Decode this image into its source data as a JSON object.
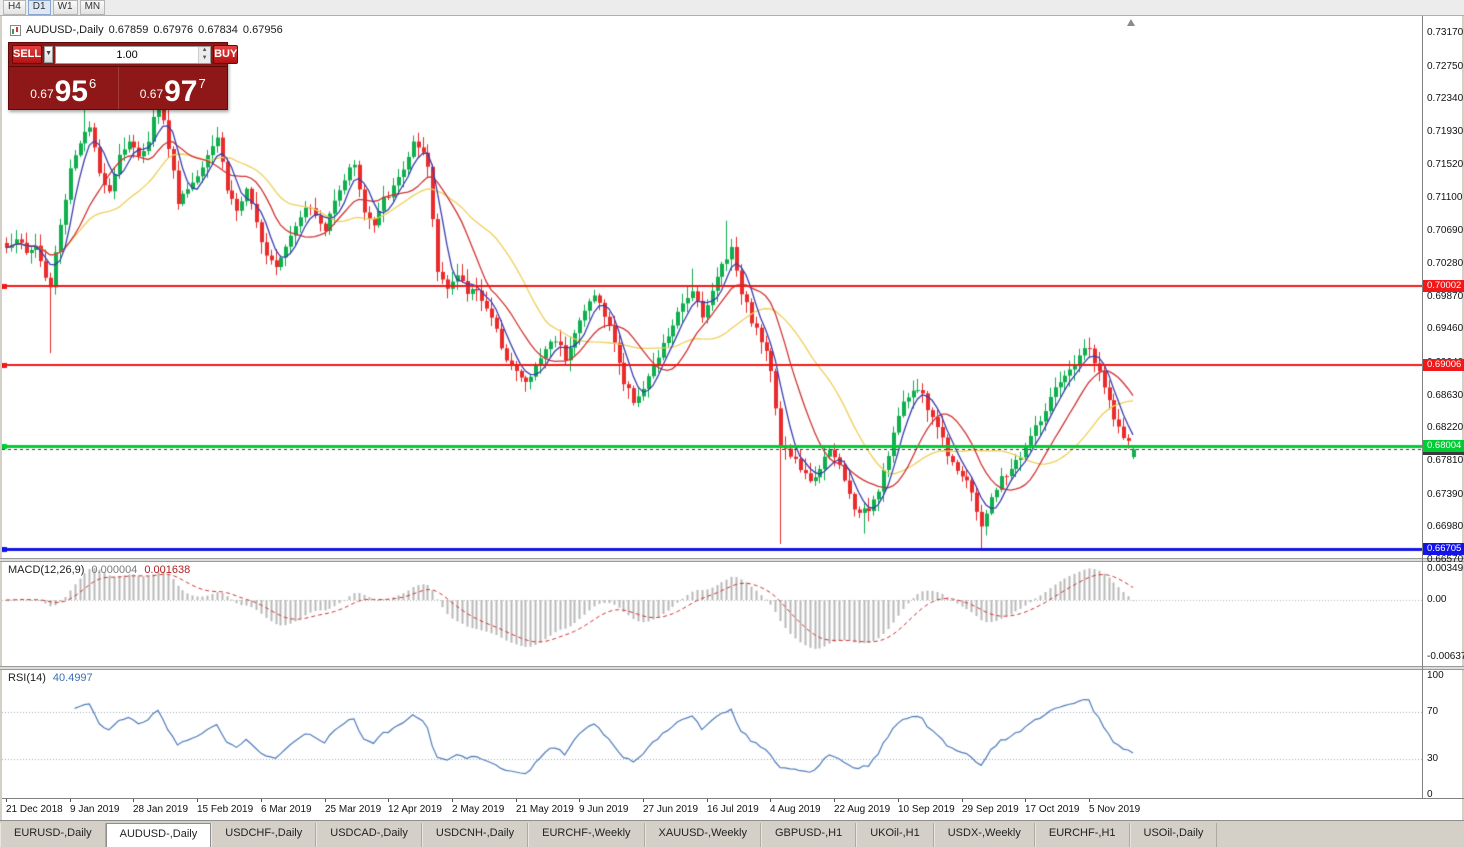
{
  "toolbar": {
    "buttons": [
      "H4",
      "D1",
      "W1",
      "MN"
    ],
    "active": "D1"
  },
  "chart": {
    "title": {
      "symbol": "AUDUSD-,Daily",
      "open": "0.67859",
      "high": "0.67976",
      "low": "0.67834",
      "close": "0.67956"
    },
    "trade_panel": {
      "sell_label": "SELL",
      "buy_label": "BUY",
      "volume": "1.00",
      "sell_price_small": "0.67",
      "sell_price_big": "95",
      "sell_price_sup": "6",
      "buy_price_small": "0.67",
      "buy_price_big": "97",
      "buy_price_sup": "7",
      "icons": {
        "dropdown_arrow": "▼",
        "spin_up": "▲",
        "spin_down": "▼"
      }
    },
    "price_axis_labels": [
      "0.73170",
      "0.72750",
      "0.72340",
      "0.71930",
      "0.71520",
      "0.71100",
      "0.70690",
      "0.70280",
      "0.69870",
      "0.69460",
      "0.69040",
      "0.68630",
      "0.68220",
      "0.67810",
      "0.67390",
      "0.66980",
      "0.66570"
    ],
    "hlines": [
      {
        "price": 0.70002,
        "label": "0.70002",
        "color": "#f01818",
        "width": 2
      },
      {
        "price": 0.69006,
        "label": "0.69006",
        "color": "#f01818",
        "width": 2
      },
      {
        "price": 0.68004,
        "label": "0.68004",
        "color": "#00cc33",
        "width": 3,
        "on_top": true
      },
      {
        "price": 0.66705,
        "label": "0.66705",
        "color": "#1414e6",
        "width": 3
      }
    ],
    "current_price": {
      "value": 0.67956,
      "label": "0.67956",
      "color": "#3a3a3a"
    },
    "date_labels": [
      "21 Dec 2018",
      "9 Jan 2019",
      "28 Jan 2019",
      "15 Feb 2019",
      "6 Mar 2019",
      "25 Mar 2019",
      "12 Apr 2019",
      "2 May 2019",
      "21 May 2019",
      "9 Jun 2019",
      "27 Jun 2019",
      "16 Jul 2019",
      "4 Aug 2019",
      "22 Aug 2019",
      "10 Sep 2019",
      "29 Sep 2019",
      "17 Oct 2019",
      "5 Nov 2019"
    ]
  },
  "chart_data": {
    "type": "candlestick",
    "symbol": "AUDUSD",
    "timeframe": "Daily",
    "candle_count": 231,
    "seed": 1337,
    "up_color": "#0fae4e",
    "down_color": "#ea2b2b",
    "y_axis": {
      "min": 0.6657,
      "max": 0.7317
    },
    "horizontal_levels": [
      0.70002,
      0.69006,
      0.68004,
      0.66705
    ],
    "close_waypoints": [
      [
        0,
        0.7048
      ],
      [
        2,
        0.7062
      ],
      [
        4,
        0.704
      ],
      [
        6,
        0.7052
      ],
      [
        8,
        0.701
      ],
      [
        9,
        0.6998
      ],
      [
        10,
        0.7042
      ],
      [
        11,
        0.7075
      ],
      [
        13,
        0.7148
      ],
      [
        15,
        0.7182
      ],
      [
        17,
        0.7198
      ],
      [
        19,
        0.714
      ],
      [
        21,
        0.7122
      ],
      [
        23,
        0.7165
      ],
      [
        25,
        0.7182
      ],
      [
        27,
        0.716
      ],
      [
        29,
        0.7185
      ],
      [
        31,
        0.7235
      ],
      [
        33,
        0.7175
      ],
      [
        35,
        0.7108
      ],
      [
        37,
        0.7122
      ],
      [
        39,
        0.714
      ],
      [
        41,
        0.7168
      ],
      [
        43,
        0.7188
      ],
      [
        45,
        0.7122
      ],
      [
        47,
        0.7095
      ],
      [
        49,
        0.7118
      ],
      [
        51,
        0.7078
      ],
      [
        53,
        0.7042
      ],
      [
        55,
        0.7028
      ],
      [
        57,
        0.7052
      ],
      [
        59,
        0.7078
      ],
      [
        61,
        0.7102
      ],
      [
        63,
        0.7088
      ],
      [
        65,
        0.7068
      ],
      [
        67,
        0.7112
      ],
      [
        69,
        0.7135
      ],
      [
        71,
        0.7155
      ],
      [
        73,
        0.7092
      ],
      [
        75,
        0.7075
      ],
      [
        77,
        0.7108
      ],
      [
        79,
        0.7122
      ],
      [
        81,
        0.7148
      ],
      [
        83,
        0.7178
      ],
      [
        85,
        0.7162
      ],
      [
        86,
        0.7148
      ],
      [
        88,
        0.7018
      ],
      [
        90,
        0.7002
      ],
      [
        92,
        0.7012
      ],
      [
        94,
        0.6992
      ],
      [
        96,
        0.6998
      ],
      [
        98,
        0.6972
      ],
      [
        100,
        0.6942
      ],
      [
        102,
        0.6912
      ],
      [
        104,
        0.6892
      ],
      [
        106,
        0.6878
      ],
      [
        108,
        0.6898
      ],
      [
        110,
        0.6922
      ],
      [
        112,
        0.6935
      ],
      [
        114,
        0.6912
      ],
      [
        116,
        0.6942
      ],
      [
        118,
        0.6968
      ],
      [
        120,
        0.6992
      ],
      [
        122,
        0.6962
      ],
      [
        124,
        0.6932
      ],
      [
        126,
        0.6878
      ],
      [
        128,
        0.6858
      ],
      [
        130,
        0.6872
      ],
      [
        132,
        0.6898
      ],
      [
        134,
        0.6925
      ],
      [
        136,
        0.6952
      ],
      [
        138,
        0.6975
      ],
      [
        140,
        0.6998
      ],
      [
        142,
        0.6965
      ],
      [
        144,
        0.6992
      ],
      [
        146,
        0.7028
      ],
      [
        148,
        0.7048
      ],
      [
        150,
        0.6995
      ],
      [
        152,
        0.6958
      ],
      [
        154,
        0.6932
      ],
      [
        156,
        0.6898
      ],
      [
        158,
        0.6802
      ],
      [
        160,
        0.6788
      ],
      [
        162,
        0.6772
      ],
      [
        164,
        0.6752
      ],
      [
        166,
        0.6775
      ],
      [
        168,
        0.6792
      ],
      [
        170,
        0.6775
      ],
      [
        172,
        0.6738
      ],
      [
        174,
        0.6712
      ],
      [
        176,
        0.6722
      ],
      [
        178,
        0.6748
      ],
      [
        180,
        0.6792
      ],
      [
        182,
        0.6838
      ],
      [
        184,
        0.6862
      ],
      [
        186,
        0.6875
      ],
      [
        188,
        0.6848
      ],
      [
        190,
        0.6825
      ],
      [
        192,
        0.6792
      ],
      [
        194,
        0.6772
      ],
      [
        196,
        0.6755
      ],
      [
        198,
        0.6718
      ],
      [
        199,
        0.6702
      ],
      [
        201,
        0.6732
      ],
      [
        203,
        0.6758
      ],
      [
        205,
        0.6772
      ],
      [
        207,
        0.6788
      ],
      [
        209,
        0.6812
      ],
      [
        211,
        0.6832
      ],
      [
        213,
        0.6858
      ],
      [
        215,
        0.6878
      ],
      [
        217,
        0.6892
      ],
      [
        219,
        0.6915
      ],
      [
        221,
        0.6922
      ],
      [
        222,
        0.6905
      ],
      [
        224,
        0.6872
      ],
      [
        226,
        0.6838
      ],
      [
        228,
        0.6808
      ],
      [
        230,
        0.6796
      ]
    ],
    "wick_events": [
      {
        "i": 9,
        "low": 0.6916
      },
      {
        "i": 16,
        "high": 0.7228
      },
      {
        "i": 31,
        "high": 0.7248
      },
      {
        "i": 140,
        "high": 0.7022
      },
      {
        "i": 147,
        "high": 0.7082
      },
      {
        "i": 158,
        "low": 0.6677
      },
      {
        "i": 175,
        "low": 0.669
      },
      {
        "i": 199,
        "low": 0.6672
      },
      {
        "i": 221,
        "high": 0.6932
      }
    ],
    "last_candle": {
      "open": 0.67859,
      "high": 0.67976,
      "low": 0.67834,
      "close": 0.67956
    },
    "moving_averages": [
      {
        "name": "slow-ma",
        "period": 24,
        "color": "#efcf5a"
      },
      {
        "name": "mid-ma",
        "period": 12,
        "color": "#cf3434"
      },
      {
        "name": "fast-ma",
        "period": 5,
        "color": "#3a3eae"
      }
    ]
  },
  "macd_panel": {
    "name": "MACD(12,26,9)",
    "fast": 12,
    "slow": 26,
    "signal_period": 9,
    "value_main": "0.000004",
    "value_signal": "0.001638",
    "axis_labels": [
      "0.00349",
      "0.00",
      "-0.00637"
    ],
    "histogram_color": "#b8b8b8",
    "signal_color": "#cf3434"
  },
  "rsi_panel": {
    "name": "RSI(14)",
    "period": 14,
    "value": "40.4997",
    "axis_labels": [
      "100",
      "70",
      "30",
      "0"
    ],
    "levels": [
      70,
      30
    ],
    "line_color": "#4f7cba",
    "level_color": "#9fa8bf"
  },
  "tabs": {
    "active_index": 1,
    "items": [
      {
        "label": "EURUSD-,Daily"
      },
      {
        "label": "AUDUSD-,Daily"
      },
      {
        "label": "USDCHF-,Daily"
      },
      {
        "label": "USDCAD-,Daily"
      },
      {
        "label": "USDCNH-,Daily"
      },
      {
        "label": "EURCHF-,Weekly"
      },
      {
        "label": "XAUUSD-,Weekly"
      },
      {
        "label": "GBPUSD-,H1"
      },
      {
        "label": "UKOil-,H1"
      },
      {
        "label": "USDX-,Weekly"
      },
      {
        "label": "EURCHF-,H1"
      },
      {
        "label": "USOil-,Daily"
      }
    ]
  }
}
